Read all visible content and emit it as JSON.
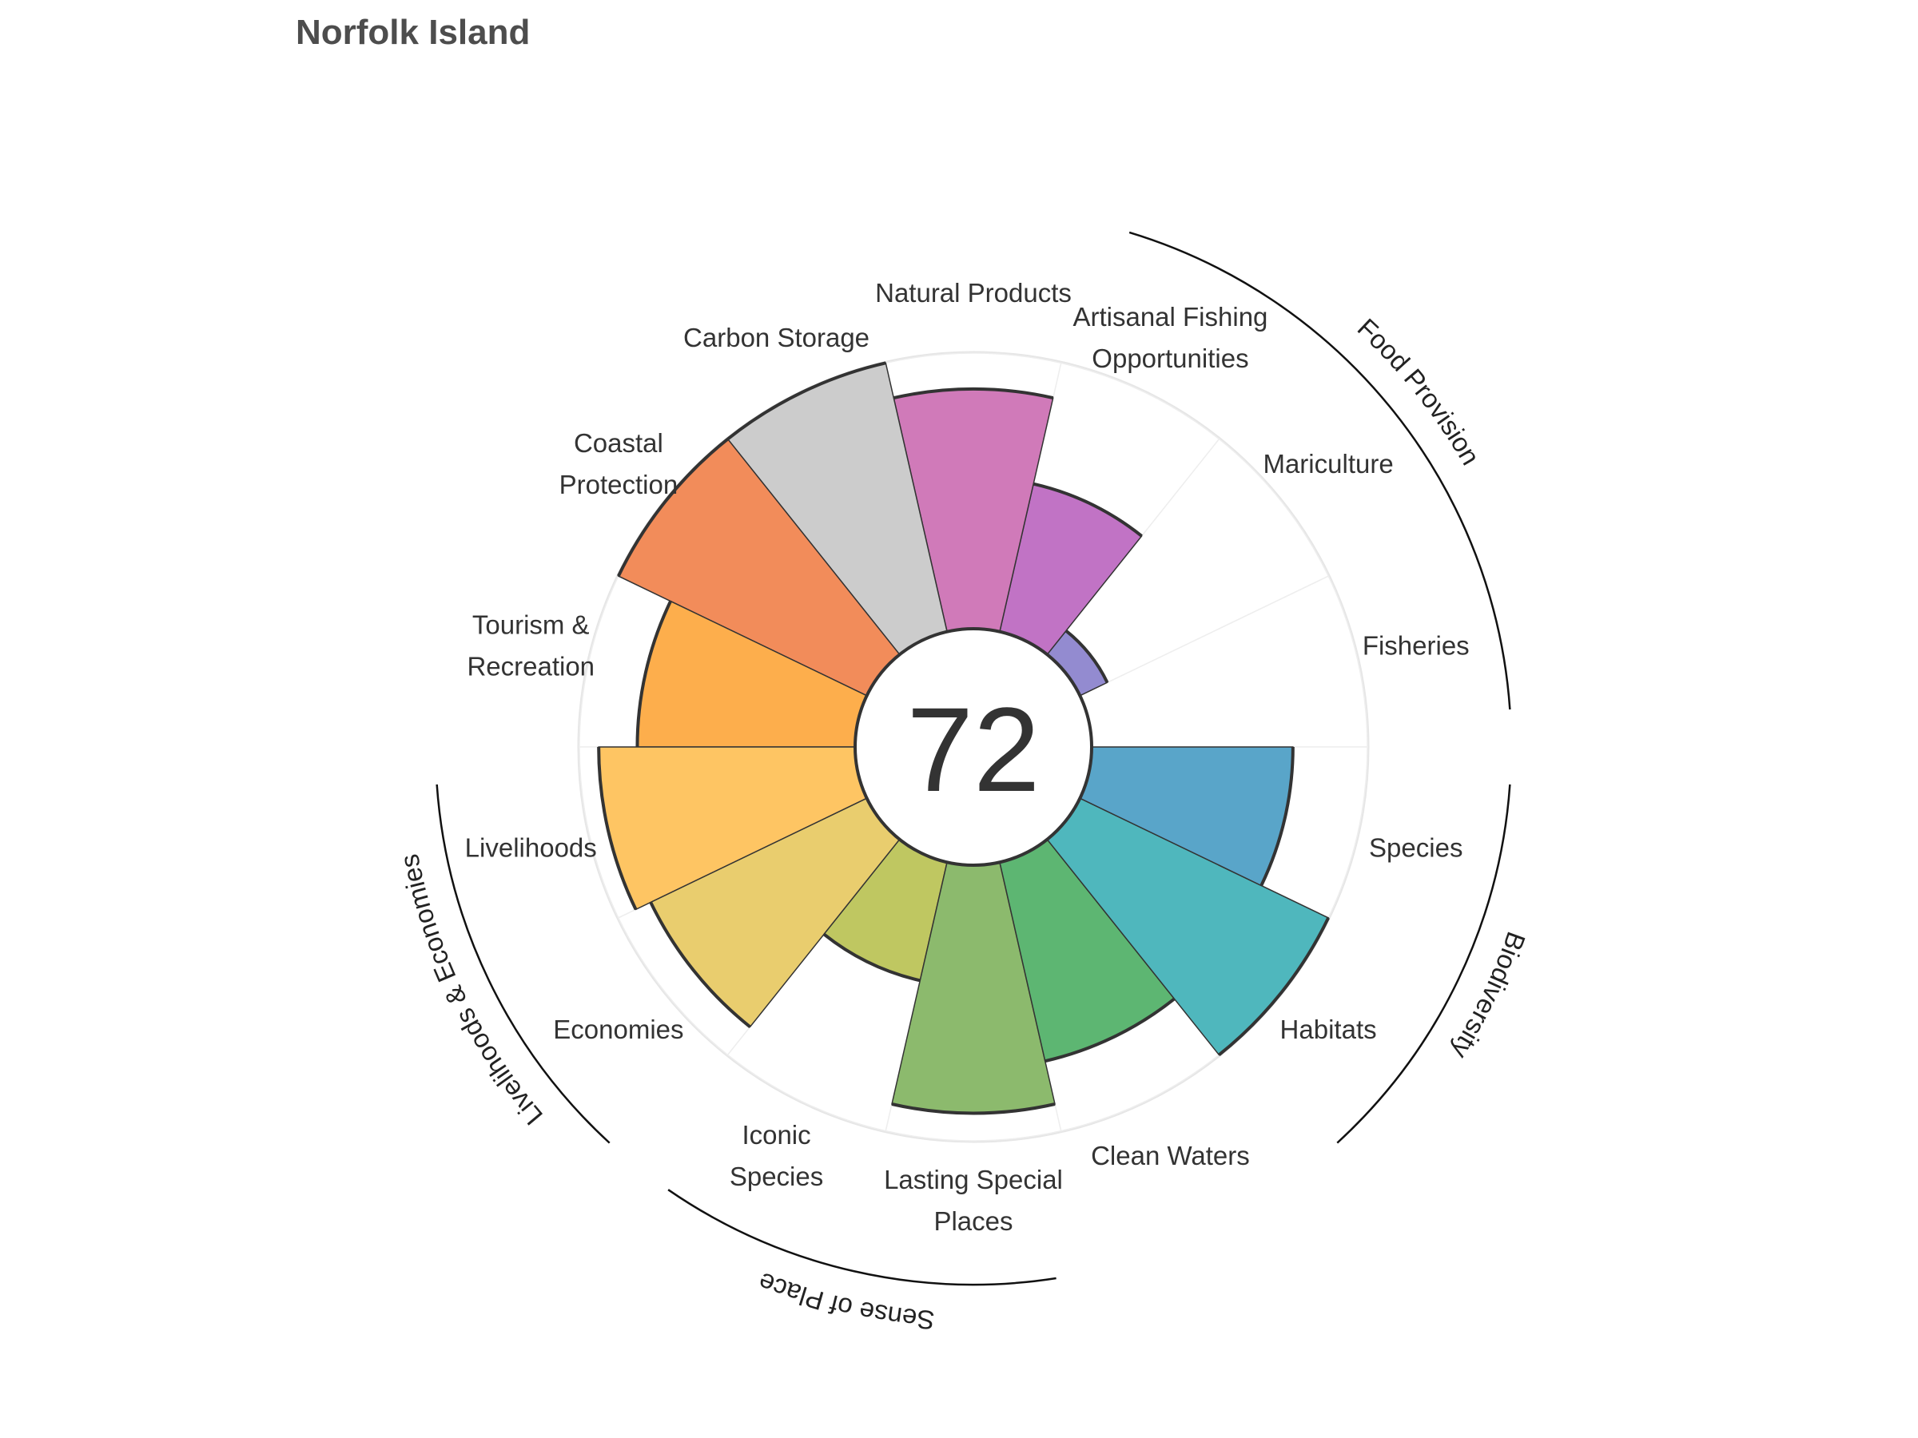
{
  "chart_data": {
    "type": "polar-bar",
    "title": "Norfolk Island",
    "overall_score": "72",
    "rlim": [
      0,
      100
    ],
    "grid": false,
    "categories": [
      {
        "name": "Fisheries",
        "lines": [
          "Fisheries"
        ],
        "value": 0,
        "color": "#ffffff"
      },
      {
        "name": "Mariculture",
        "lines": [
          "Mariculture"
        ],
        "value": 11,
        "color": "#938bd0"
      },
      {
        "name": "Artisanal Fishing Opportunities",
        "lines": [
          "Artisanal Fishing",
          "Opportunities"
        ],
        "value": 55,
        "color": "#c173c5"
      },
      {
        "name": "Natural Products",
        "lines": [
          "Natural Products"
        ],
        "value": 87,
        "color": "#d07ab9"
      },
      {
        "name": "Carbon Storage",
        "lines": [
          "Carbon Storage"
        ],
        "value": 100,
        "color": "#cccccc"
      },
      {
        "name": "Coastal Protection",
        "lines": [
          "Coastal",
          "Protection"
        ],
        "value": 100,
        "color": "#f28c5a"
      },
      {
        "name": "Tourism & Recreation",
        "lines": [
          "Tourism &",
          "Recreation"
        ],
        "value": 79,
        "color": "#fdae4c"
      },
      {
        "name": "Livelihoods",
        "lines": [
          "Livelihoods"
        ],
        "value": 93,
        "color": "#fec563"
      },
      {
        "name": "Economies",
        "lines": [
          "Economies"
        ],
        "value": 87,
        "color": "#e9cd6e"
      },
      {
        "name": "Iconic Species",
        "lines": [
          "Iconic",
          "Species"
        ],
        "value": 44,
        "color": "#bfc761"
      },
      {
        "name": "Lasting Special Places",
        "lines": [
          "Lasting Special",
          "Places"
        ],
        "value": 90,
        "color": "#8cba6d"
      },
      {
        "name": "Clean Waters",
        "lines": [
          "Clean Waters"
        ],
        "value": 74,
        "color": "#5db672"
      },
      {
        "name": "Habitats",
        "lines": [
          "Habitats"
        ],
        "value": 100,
        "color": "#4fb7bd"
      },
      {
        "name": "Species",
        "lines": [
          "Species"
        ],
        "value": 73,
        "color": "#59a5c9"
      }
    ],
    "goal_groups": [
      {
        "name": "Food Provision",
        "start": 0,
        "end": 3
      },
      {
        "name": "Biodiversity",
        "start": 12,
        "end": 14
      },
      {
        "name": "Sense of Place",
        "start": 9,
        "end": 11
      },
      {
        "name": "Livelihoods & Economies",
        "start": 7,
        "end": 9
      }
    ]
  }
}
